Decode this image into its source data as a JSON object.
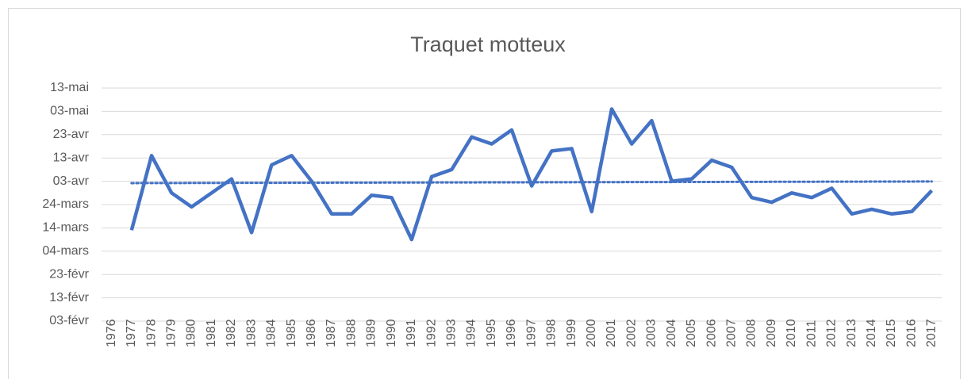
{
  "chart_data": {
    "type": "line",
    "title": "Traquet motteux",
    "categories": [
      "1976",
      "1977",
      "1978",
      "1979",
      "1980",
      "1981",
      "1982",
      "1983",
      "1984",
      "1985",
      "1986",
      "1987",
      "1988",
      "1989",
      "1990",
      "1991",
      "1992",
      "1993",
      "1994",
      "1995",
      "1996",
      "1997",
      "1998",
      "1999",
      "2000",
      "2001",
      "2002",
      "2003",
      "2004",
      "2005",
      "2006",
      "2007",
      "2008",
      "2009",
      "2010",
      "2011",
      "2012",
      "2013",
      "2014",
      "2015",
      "2016",
      "2017"
    ],
    "series": [
      {
        "color": "#4472c4",
        "values": [
          null,
          73,
          105,
          89,
          83,
          89,
          95,
          72,
          101,
          105,
          94,
          80,
          80,
          88,
          87,
          69,
          96,
          99,
          113,
          110,
          116,
          92,
          107,
          108,
          81,
          125,
          110,
          120,
          94,
          95,
          103,
          100,
          87,
          85,
          89,
          87,
          91,
          80,
          82,
          80,
          81,
          90
        ]
      }
    ],
    "trendline": {
      "categories": [
        "1977",
        "2017"
      ],
      "values": [
        93.2,
        93.9
      ],
      "color": "#4472c4",
      "dash": "dotted"
    },
    "ylim": [
      34,
      134
    ],
    "yticks": [
      {
        "value": 34,
        "label": "03-févr"
      },
      {
        "value": 44,
        "label": "13-févr"
      },
      {
        "value": 54,
        "label": "23-févr"
      },
      {
        "value": 64,
        "label": "04-mars"
      },
      {
        "value": 74,
        "label": "14-mars"
      },
      {
        "value": 84,
        "label": "24-mars"
      },
      {
        "value": 94,
        "label": "03-avr"
      },
      {
        "value": 104,
        "label": "13-avr"
      },
      {
        "value": 114,
        "label": "23-avr"
      },
      {
        "value": 124,
        "label": "03-mai"
      },
      {
        "value": 134,
        "label": "13-mai"
      }
    ],
    "grid": true
  }
}
